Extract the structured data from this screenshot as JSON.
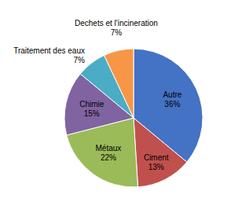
{
  "chart_data": {
    "type": "pie",
    "categories": [
      "Autre",
      "Ciment",
      "Métaux",
      "Chimie",
      "Traitement des eaux",
      "Dechets et l'incineration"
    ],
    "values": [
      36,
      13,
      22,
      15,
      7,
      7
    ],
    "value_labels": [
      "36%",
      "13%",
      "22%",
      "15%",
      "7%",
      "7%"
    ],
    "colors": [
      "#4472C4",
      "#C0504D",
      "#9BBB59",
      "#8064A2",
      "#4BACC6",
      "#F79646"
    ],
    "data_labels": true
  }
}
